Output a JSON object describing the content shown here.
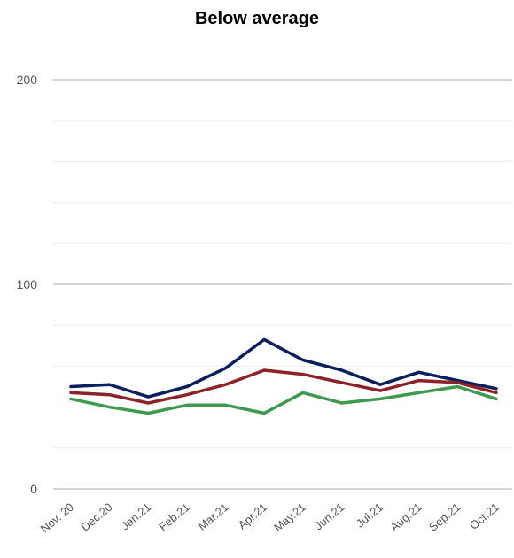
{
  "chart_data": {
    "type": "line",
    "title": "Below average",
    "xlabel": "",
    "ylabel": "",
    "ylim": [
      0,
      200
    ],
    "yticks": [
      0,
      100,
      200
    ],
    "grid": true,
    "categories": [
      "Nov. 20",
      "Dec.20",
      "Jan.21",
      "Feb.21",
      "Mar.21",
      "Apr.21",
      "May.21",
      "Jun.21",
      "Jul.21",
      "Aug.21",
      "Sep.21",
      "Oct.21"
    ],
    "series": [
      {
        "color": "#0b1f5c",
        "values": [
          50,
          51,
          45,
          50,
          59,
          73,
          63,
          58,
          51,
          57,
          53,
          49
        ]
      },
      {
        "color": "#8b2329",
        "values": [
          47,
          46,
          42,
          46,
          51,
          58,
          56,
          52,
          48,
          53,
          52,
          47
        ]
      },
      {
        "color": "#3f9a4f",
        "values": [
          44,
          40,
          37,
          41,
          41,
          37,
          47,
          42,
          44,
          47,
          50,
          44
        ]
      }
    ]
  }
}
